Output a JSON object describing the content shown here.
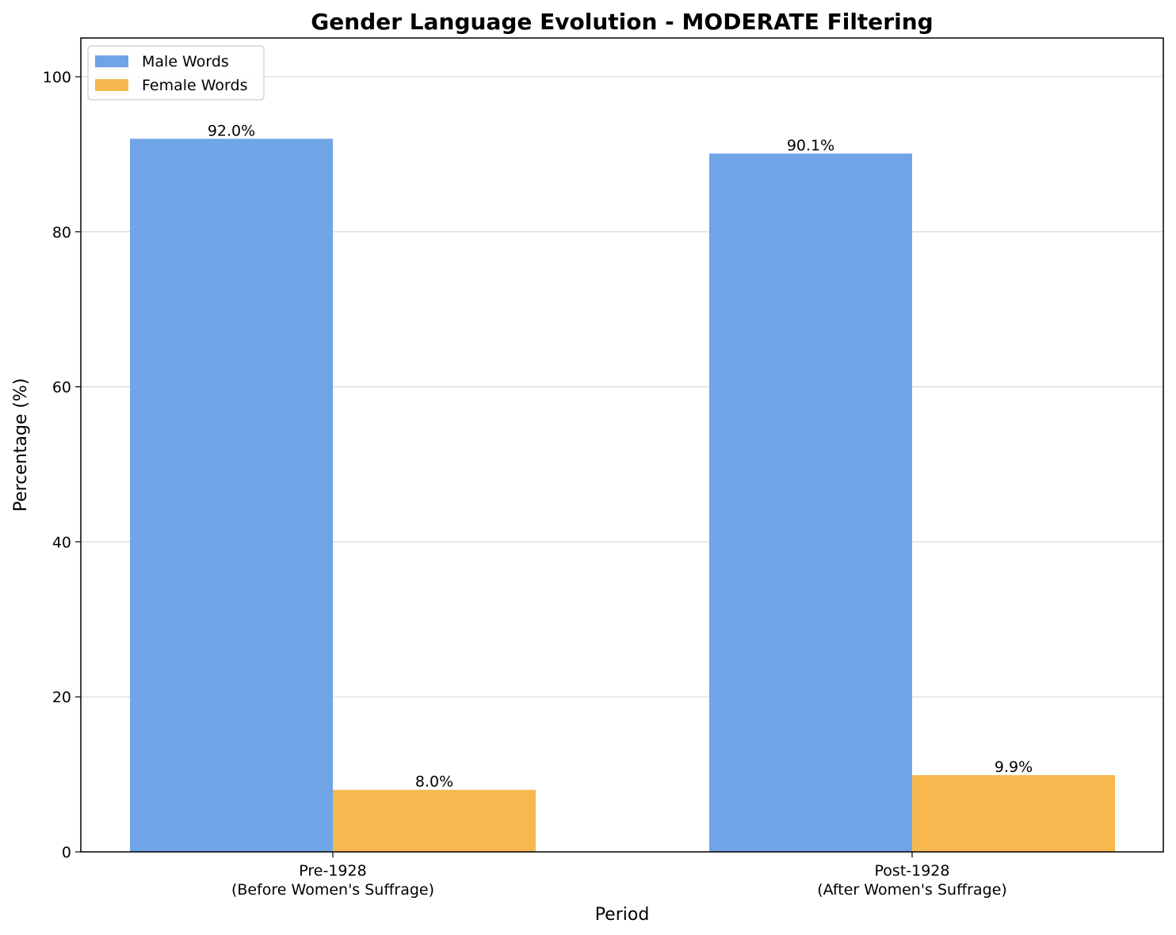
{
  "chart_data": {
    "type": "bar",
    "title": "Gender Language Evolution - MODERATE Filtering",
    "xlabel": "Period",
    "ylabel": "Percentage (%)",
    "ylim": [
      0,
      105
    ],
    "yticks": [
      0,
      20,
      40,
      60,
      80,
      100
    ],
    "grid": "y",
    "legend_position": "upper-left",
    "categories": [
      [
        "Pre-1928",
        "(Before Women's Suffrage)"
      ],
      [
        "Post-1928",
        "(After Women's Suffrage)"
      ]
    ],
    "series": [
      {
        "name": "Male Words",
        "color": "#6fa5e6",
        "values": [
          92.0,
          90.1
        ],
        "labels": [
          "92.0%",
          "90.1%"
        ]
      },
      {
        "name": "Female Words",
        "color": "#f6b84f",
        "values": [
          8.0,
          9.9
        ],
        "labels": [
          "8.0%",
          "9.9%"
        ]
      }
    ]
  }
}
